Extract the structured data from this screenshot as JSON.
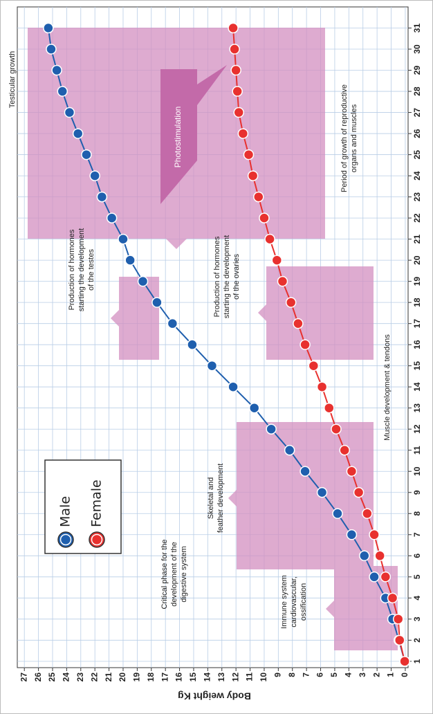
{
  "chart_data": {
    "type": "line",
    "y_label": "Body weight Kg",
    "x": [
      1,
      2,
      3,
      4,
      5,
      6,
      7,
      8,
      9,
      10,
      11,
      12,
      13,
      14,
      15,
      16,
      17,
      18,
      19,
      20,
      21,
      22,
      23,
      24,
      25,
      26,
      27,
      28,
      29,
      30,
      31
    ],
    "xlim": [
      0.7,
      32
    ],
    "xticks": [
      1,
      2,
      3,
      4,
      5,
      6,
      7,
      8,
      9,
      10,
      11,
      12,
      13,
      14,
      15,
      16,
      17,
      18,
      19,
      20,
      21,
      22,
      23,
      24,
      25,
      26,
      27,
      28,
      29,
      30,
      31
    ],
    "ylim": [
      -0.2,
      27.5
    ],
    "yticks": [
      0,
      1,
      2,
      3,
      4,
      5,
      6,
      7,
      8,
      9,
      10,
      11,
      12,
      13,
      14,
      15,
      16,
      17,
      18,
      19,
      20,
      21,
      22,
      23,
      24,
      25,
      26,
      27
    ],
    "grid": true,
    "series": [
      {
        "name": "Male",
        "color": "#1f5fae",
        "values": [
          0.04,
          0.45,
          0.9,
          1.4,
          2.2,
          2.9,
          3.8,
          4.8,
          5.9,
          7.1,
          8.2,
          9.5,
          10.7,
          12.2,
          13.7,
          15.1,
          16.5,
          17.6,
          18.6,
          19.5,
          20.0,
          20.8,
          21.5,
          22.0,
          22.6,
          23.2,
          23.8,
          24.3,
          24.7,
          25.1,
          25.3
        ]
      },
      {
        "name": "Female",
        "color": "#e8312f",
        "values": [
          0.04,
          0.4,
          0.5,
          0.9,
          1.4,
          1.8,
          2.2,
          2.7,
          3.3,
          3.8,
          4.3,
          4.9,
          5.4,
          5.9,
          6.5,
          7.1,
          7.6,
          8.1,
          8.7,
          9.1,
          9.6,
          10.0,
          10.4,
          10.8,
          11.1,
          11.5,
          11.8,
          11.9,
          12.0,
          12.1,
          12.2
        ]
      }
    ],
    "annotations": [
      {
        "lines": [
          "Testicular growth"
        ]
      },
      {
        "lines": [
          "Photostimulation"
        ]
      },
      {
        "lines": [
          "Production of hormones",
          "starting the development",
          "of the testes"
        ]
      },
      {
        "lines": [
          "Period of growth of reproductive",
          "organs and muscles"
        ]
      },
      {
        "lines": [
          "Production of hormones",
          "starting the development",
          "of the ovaries"
        ]
      },
      {
        "lines": [
          "Muscle development & tendons"
        ]
      },
      {
        "lines": [
          "Skeletal and",
          "feather development"
        ]
      },
      {
        "lines": [
          "Critical phase for the",
          "development of the",
          "digestive system"
        ]
      },
      {
        "lines": [
          "Immune system",
          "cardiovascular,",
          "ossification"
        ]
      }
    ]
  }
}
